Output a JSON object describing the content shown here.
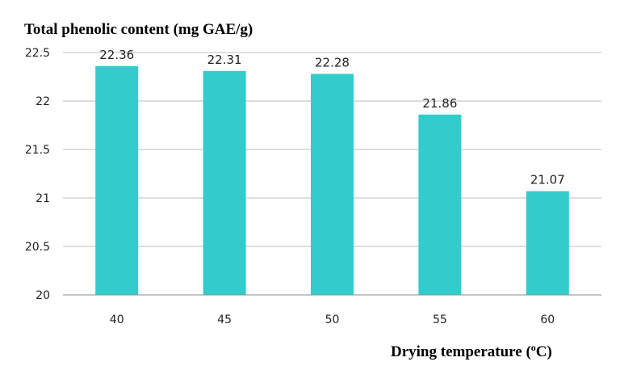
{
  "chart_data": {
    "type": "bar",
    "title": "",
    "ylabel": "Total phenolic content (mg GAE/g)",
    "xlabel_main": "Drying temperature (",
    "xlabel_sup": "o",
    "xlabel_end": "C)",
    "categories": [
      "40",
      "45",
      "50",
      "55",
      "60"
    ],
    "values": [
      22.36,
      22.31,
      22.28,
      21.86,
      21.07
    ],
    "data_labels": [
      "22.36",
      "22.31",
      "22.28",
      "21.86",
      "21.07"
    ],
    "ylim": [
      20,
      22.5
    ],
    "yticks": [
      "20",
      "20.5",
      "21",
      "21.5",
      "22",
      "22.5"
    ],
    "bar_color": "#33CCCC",
    "grid": true,
    "legend": "none"
  }
}
